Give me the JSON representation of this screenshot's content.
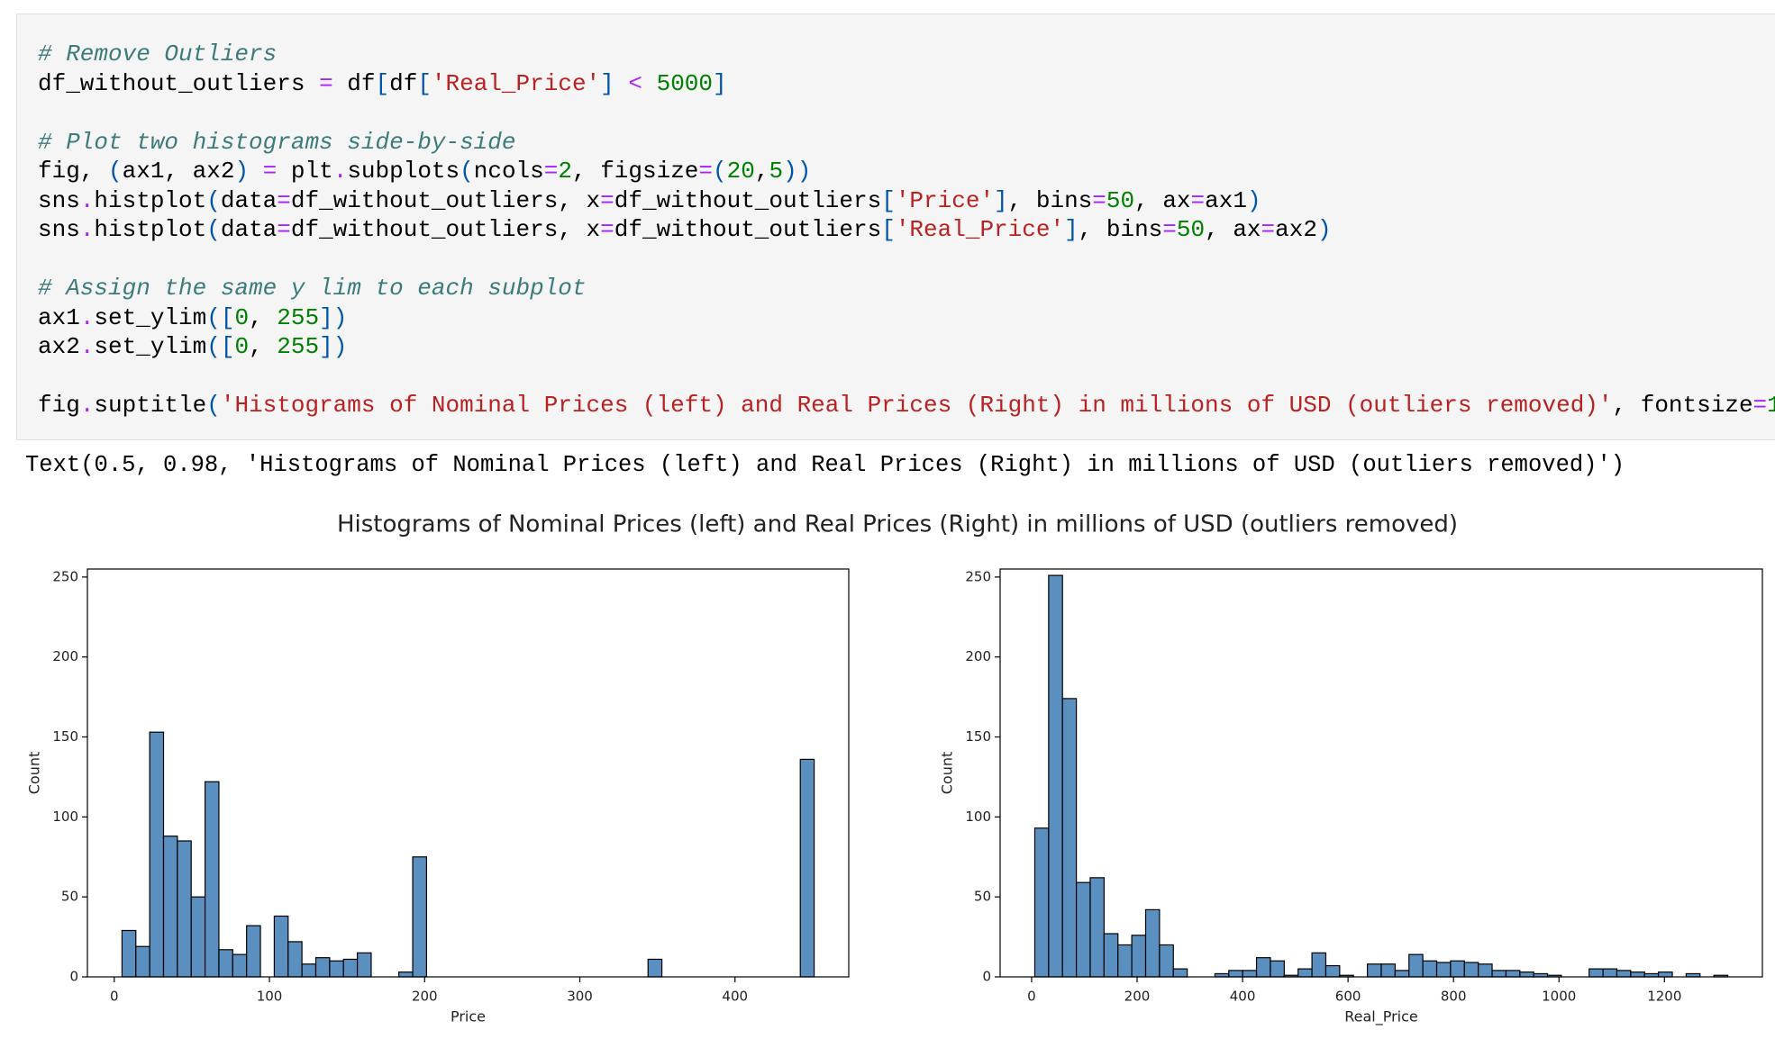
{
  "code": {
    "blocks": [
      [
        "# Remove Outliers",
        "df_without_outliers = df[df['Real_Price'] < 5000]"
      ],
      [
        "# Plot two histograms side-by-side",
        "fig, (ax1, ax2) = plt.subplots(ncols=2, figsize=(20,5))",
        "sns.histplot(data=df_without_outliers, x=df_without_outliers['Price'], bins=50, ax=ax1)",
        "sns.histplot(data=df_without_outliers, x=df_without_outliers['Real_Price'], bins=50, ax=ax2)"
      ],
      [
        "# Assign the same y lim to each subplot",
        "ax1.set_ylim([0, 255])",
        "ax2.set_ylim([0, 255])"
      ],
      [
        "fig.suptitle('Histograms of Nominal Prices (left) and Real Prices (Right) in millions of USD (outliers removed)', fontsize=1"
      ]
    ]
  },
  "output": "Text(0.5, 0.98, 'Histograms of Nominal Prices (left) and Real Prices (Right) in millions of USD (outliers removed)')",
  "figure_title": "Histograms of Nominal Prices (left) and Real Prices (Right) in millions of USD (outliers removed)",
  "chart_data": [
    {
      "type": "histogram",
      "xlabel": "Price",
      "ylabel": "Count",
      "color": "#5a8fc0",
      "bins": [
        5,
        13.92,
        22.84,
        31.76,
        40.68,
        49.6,
        58.52,
        67.44,
        76.36,
        85.28,
        94.2,
        103.12,
        112.04,
        120.96,
        129.88,
        138.8,
        147.72,
        156.64,
        165.56,
        174.48,
        183.4,
        192.32,
        201.24,
        210.16,
        219.08,
        228,
        236.92,
        245.84,
        254.76,
        263.68,
        272.6,
        281.52,
        290.44,
        299.36,
        308.28,
        317.2,
        326.12,
        335.04,
        343.96,
        352.88,
        361.8,
        370.72,
        379.64,
        388.56,
        397.48,
        406.4,
        415.32,
        424.24,
        433.16,
        442.08,
        451
      ],
      "values": [
        29,
        19,
        153,
        88,
        85,
        50,
        122,
        17,
        14,
        32,
        0,
        38,
        22,
        8,
        12,
        10,
        11,
        15,
        0,
        0,
        3,
        75,
        0,
        0,
        0,
        0,
        0,
        0,
        0,
        0,
        0,
        0,
        0,
        0,
        0,
        0,
        0,
        0,
        11,
        0,
        0,
        0,
        0,
        0,
        0,
        0,
        0,
        0,
        0,
        136
      ],
      "xlim": [
        -17.3,
        473.3
      ],
      "xticks": [
        0,
        100,
        200,
        300,
        400
      ],
      "ylim": [
        0,
        255
      ],
      "yticks": [
        0,
        50,
        100,
        150,
        200,
        250
      ]
    },
    {
      "type": "histogram",
      "xlabel": "Real_Price",
      "ylabel": "Count",
      "color": "#5a8fc0",
      "bins": [
        6,
        32.28,
        58.56,
        84.84,
        111.12,
        137.4,
        163.68,
        189.96,
        216.24,
        242.52,
        268.8,
        295.08,
        321.36,
        347.64,
        373.92,
        400.2,
        426.48,
        452.76,
        479.04,
        505.32,
        531.6,
        557.88,
        584.16,
        610.44,
        636.72,
        663,
        689.28,
        715.56,
        741.84,
        768.12,
        794.4,
        820.68,
        846.96,
        873.24,
        899.52,
        925.8,
        952.08,
        978.36,
        1004.64,
        1030.92,
        1057.2,
        1083.48,
        1109.76,
        1136.04,
        1162.32,
        1188.6,
        1214.88,
        1241.16,
        1267.44,
        1293.72,
        1320
      ],
      "values": [
        93,
        251,
        174,
        59,
        62,
        27,
        20,
        26,
        42,
        20,
        5,
        0,
        0,
        2,
        4,
        4,
        12,
        10,
        1,
        5,
        15,
        7,
        1,
        0,
        8,
        8,
        4,
        14,
        10,
        9,
        10,
        9,
        8,
        4,
        4,
        3,
        2,
        1,
        0,
        0,
        5,
        5,
        4,
        3,
        2,
        3,
        0,
        2,
        0,
        1
      ],
      "xlim": [
        -59.7,
        1385.7
      ],
      "xticks": [
        0,
        200,
        400,
        600,
        800,
        1000,
        1200
      ],
      "ylim": [
        0,
        255
      ],
      "yticks": [
        0,
        50,
        100,
        150,
        200,
        250
      ]
    }
  ]
}
